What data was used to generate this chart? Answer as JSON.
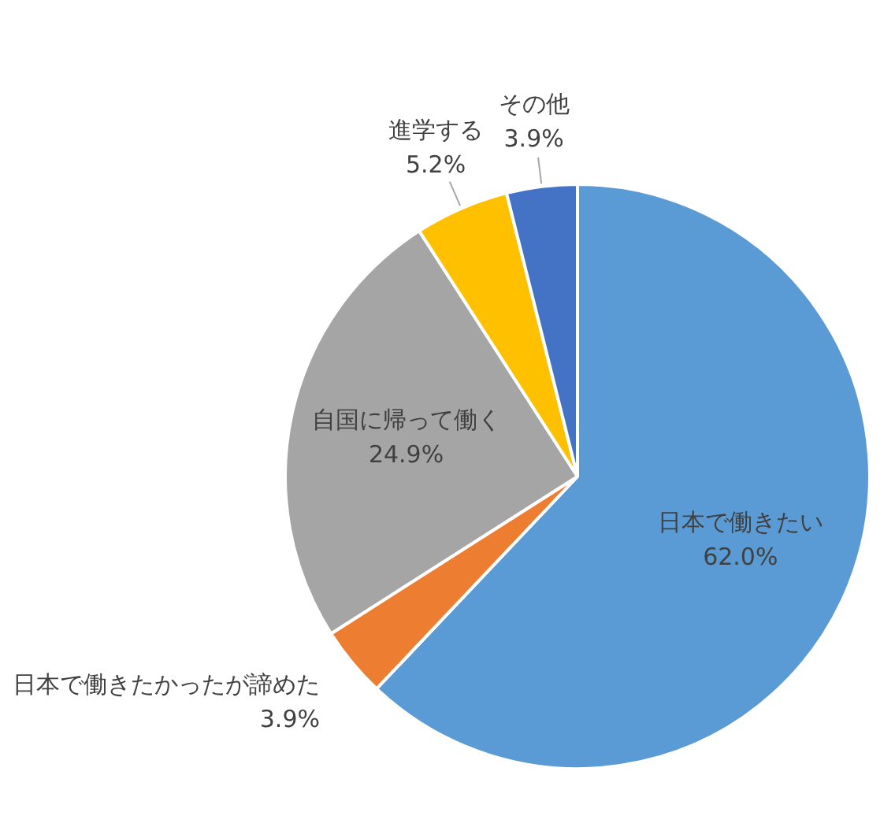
{
  "chart_data": {
    "type": "pie",
    "categories": [
      "日本で働きたい",
      "日本で働きたかったが諦めた",
      "自国に帰って働く",
      "進学する",
      "その他"
    ],
    "values": [
      62.0,
      3.9,
      24.9,
      5.2,
      3.9
    ],
    "value_labels": [
      "62.0%",
      "3.9%",
      "24.9%",
      "5.2%",
      "3.9%"
    ],
    "colors": [
      "#5b9bd5",
      "#ed7d31",
      "#a5a5a5",
      "#ffc000",
      "#4472c4"
    ],
    "legend": false
  }
}
